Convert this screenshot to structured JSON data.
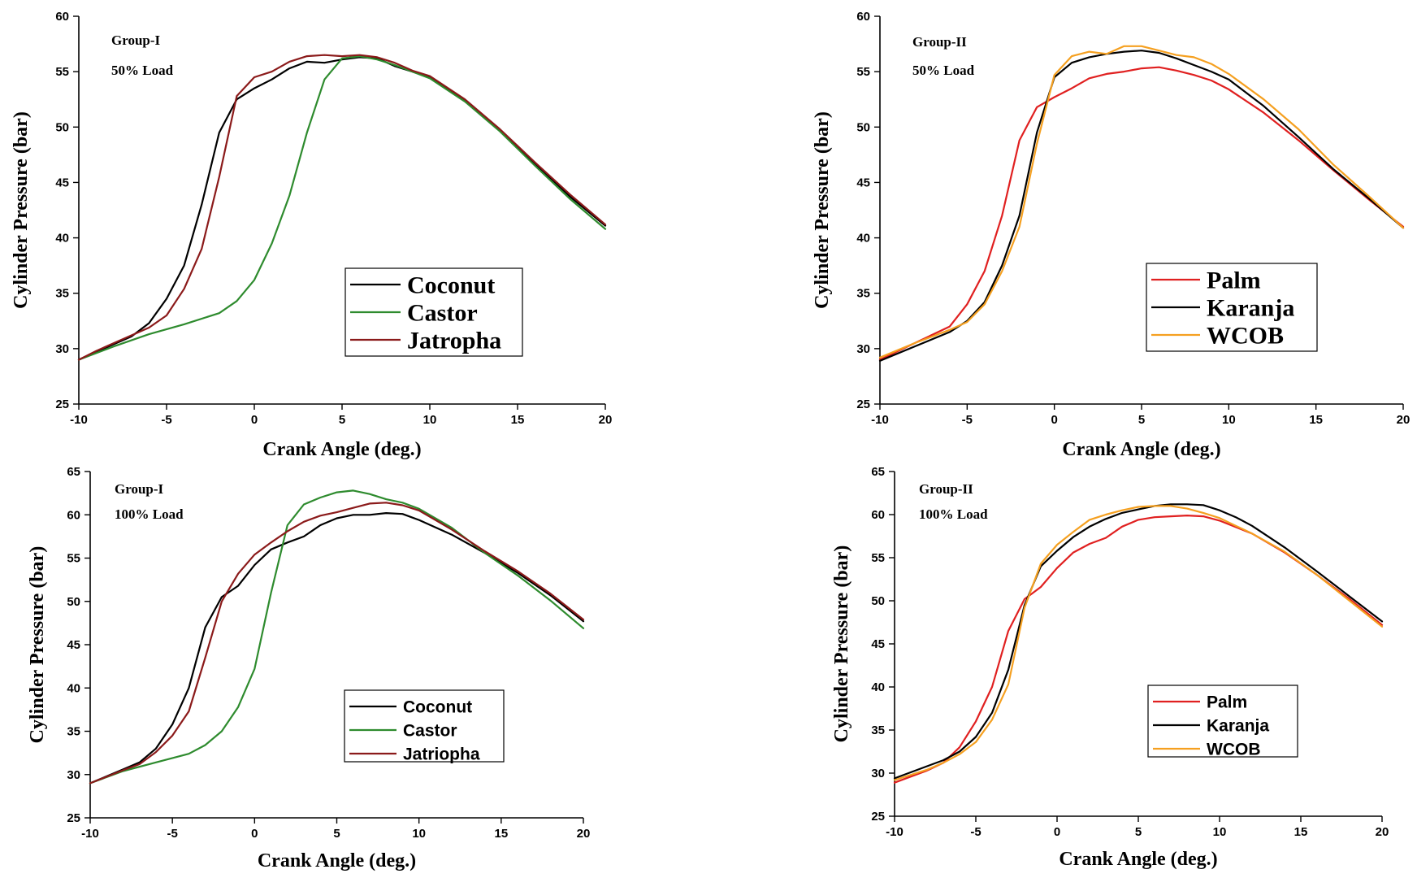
{
  "chart_data": [
    {
      "type": "line",
      "annotation": [
        "Group-I",
        "50% Load"
      ],
      "xlabel": "Crank Angle (deg.)",
      "ylabel": "Cylinder Pressure (bar)",
      "xlim": [
        -10,
        20
      ],
      "ylim": [
        25,
        60
      ],
      "xticks": [
        -10,
        -5,
        0,
        5,
        10,
        15,
        20
      ],
      "yticks": [
        25,
        30,
        35,
        40,
        45,
        50,
        55,
        60
      ],
      "legend_style": "serif",
      "series": [
        {
          "name": "Coconut",
          "color": "#000000",
          "x": [
            -10,
            -9,
            -8,
            -7,
            -6,
            -5,
            -4,
            -3,
            -2,
            -1,
            0,
            1,
            2,
            3,
            4,
            5,
            6,
            7,
            8,
            9,
            10,
            12,
            14,
            16,
            18,
            20
          ],
          "y": [
            29,
            29.7,
            30.4,
            31.1,
            32.3,
            34.5,
            37.5,
            43,
            49.5,
            52.5,
            53.5,
            54.3,
            55.3,
            55.9,
            55.8,
            56.1,
            56.3,
            56.2,
            55.5,
            55,
            54.5,
            52.4,
            49.7,
            46.7,
            43.7,
            41.1
          ]
        },
        {
          "name": "Castor",
          "color": "#2e8b2e",
          "x": [
            -10,
            -8,
            -6,
            -4,
            -2,
            -1,
            0,
            1,
            2,
            3,
            4,
            5,
            6,
            7,
            8,
            9,
            10,
            12,
            14,
            16,
            18,
            20
          ],
          "y": [
            29,
            30.2,
            31.3,
            32.2,
            33.2,
            34.3,
            36.2,
            39.5,
            43.8,
            49.5,
            54.3,
            56.2,
            56.4,
            56.1,
            55.6,
            55,
            54.4,
            52.3,
            49.6,
            46.5,
            43.5,
            40.8
          ]
        },
        {
          "name": "Jatropha",
          "color": "#8b1a1a",
          "x": [
            -10,
            -9,
            -8,
            -7,
            -6,
            -5,
            -4,
            -3,
            -2,
            -1,
            0,
            1,
            2,
            3,
            4,
            5,
            6,
            7,
            8,
            9,
            10,
            12,
            14,
            16,
            18,
            20
          ],
          "y": [
            29,
            29.8,
            30.5,
            31.2,
            31.9,
            33,
            35.4,
            39,
            45.5,
            52.8,
            54.5,
            55,
            55.9,
            56.4,
            56.5,
            56.4,
            56.5,
            56.3,
            55.8,
            55.1,
            54.6,
            52.5,
            49.8,
            46.8,
            43.9,
            41.2
          ]
        }
      ]
    },
    {
      "type": "line",
      "annotation": [
        "Group-II",
        "50% Load"
      ],
      "xlabel": "Crank Angle (deg.)",
      "ylabel": "Cylinder Pressure (bar)",
      "xlim": [
        -10,
        20
      ],
      "ylim": [
        25,
        60
      ],
      "xticks": [
        -10,
        -5,
        0,
        5,
        10,
        15,
        20
      ],
      "yticks": [
        25,
        30,
        35,
        40,
        45,
        50,
        55,
        60
      ],
      "legend_style": "serif",
      "series": [
        {
          "name": "Palm",
          "color": "#e02020",
          "x": [
            -10,
            -8,
            -6,
            -5,
            -4,
            -3,
            -2,
            -1,
            0,
            1,
            2,
            3,
            4,
            5,
            6,
            7,
            8,
            9,
            10,
            12,
            14,
            16,
            18,
            20
          ],
          "y": [
            29,
            30.5,
            32,
            34,
            37,
            42,
            48.8,
            51.8,
            52.7,
            53.5,
            54.4,
            54.8,
            55,
            55.3,
            55.4,
            55.1,
            54.7,
            54.2,
            53.4,
            51.3,
            48.8,
            46.1,
            43.5,
            41
          ]
        },
        {
          "name": "Karanja",
          "color": "#000000",
          "x": [
            -10,
            -8,
            -6,
            -5,
            -4,
            -3,
            -2,
            -1,
            0,
            1,
            2,
            3,
            4,
            5,
            6,
            7,
            8,
            9,
            10,
            12,
            14,
            16,
            18,
            20
          ],
          "y": [
            28.9,
            30.2,
            31.5,
            32.5,
            34.2,
            37.5,
            42,
            49.5,
            54.5,
            55.8,
            56.3,
            56.6,
            56.8,
            56.9,
            56.7,
            56.2,
            55.6,
            55,
            54.3,
            51.9,
            49.1,
            46.2,
            43.6,
            40.9
          ]
        },
        {
          "name": "WCOB",
          "color": "#f5a020",
          "x": [
            -10,
            -8,
            -6,
            -5,
            -4,
            -3,
            -2,
            -1,
            0,
            1,
            2,
            3,
            4,
            5,
            6,
            7,
            8,
            9,
            10,
            12,
            14,
            16,
            18,
            20
          ],
          "y": [
            29.2,
            30.5,
            31.7,
            32.4,
            34,
            37,
            41,
            48.5,
            54.7,
            56.4,
            56.8,
            56.6,
            57.3,
            57.3,
            56.9,
            56.5,
            56.3,
            55.7,
            54.8,
            52.5,
            49.8,
            46.6,
            43.8,
            40.9
          ]
        }
      ]
    },
    {
      "type": "line",
      "annotation": [
        "Group-I",
        "100% Load"
      ],
      "xlabel": "Crank Angle (deg.)",
      "ylabel": "Cylinder Pressure (bar)",
      "xlim": [
        -10,
        20
      ],
      "ylim": [
        25,
        65
      ],
      "xticks": [
        -10,
        -5,
        0,
        5,
        10,
        15,
        20
      ],
      "yticks": [
        25,
        30,
        35,
        40,
        45,
        50,
        55,
        60,
        65
      ],
      "legend_style": "sans",
      "series": [
        {
          "name": "Coconut",
          "color": "#000000",
          "x": [
            -10,
            -8,
            -7,
            -6,
            -5,
            -4,
            -3,
            -2,
            -1,
            0,
            1,
            2,
            3,
            4,
            5,
            6,
            7,
            8,
            9,
            10,
            12,
            14,
            16,
            18,
            20
          ],
          "y": [
            29,
            30.6,
            31.4,
            33,
            35.8,
            40,
            47,
            50.5,
            51.8,
            54.2,
            56,
            56.8,
            57.5,
            58.8,
            59.6,
            60,
            60,
            60.2,
            60.1,
            59.4,
            57.7,
            55.6,
            53.3,
            50.7,
            47.7
          ]
        },
        {
          "name": "Castor",
          "color": "#2e8b2e",
          "x": [
            -10,
            -8,
            -6,
            -4,
            -3,
            -2,
            -1,
            0,
            1,
            2,
            3,
            4,
            5,
            6,
            7,
            8,
            9,
            10,
            12,
            14,
            16,
            18,
            20
          ],
          "y": [
            29,
            30.4,
            31.4,
            32.4,
            33.4,
            35,
            37.8,
            42.2,
            51,
            58.8,
            61.2,
            62,
            62.6,
            62.8,
            62.4,
            61.8,
            61.4,
            60.7,
            58.5,
            55.6,
            53,
            50.1,
            46.9
          ]
        },
        {
          "name": "Jatriopha",
          "color": "#8b1a1a",
          "x": [
            -10,
            -8,
            -7,
            -6,
            -5,
            -4,
            -3,
            -2,
            -1,
            0,
            1,
            2,
            3,
            4,
            5,
            6,
            7,
            8,
            9,
            10,
            12,
            14,
            16,
            18,
            20
          ],
          "y": [
            29,
            30.5,
            31.2,
            32.6,
            34.5,
            37.3,
            43.5,
            50,
            53.2,
            55.4,
            56.8,
            58.1,
            59.2,
            59.9,
            60.3,
            60.8,
            61.3,
            61.4,
            61.1,
            60.5,
            58.3,
            55.8,
            53.5,
            50.9,
            47.9
          ]
        }
      ]
    },
    {
      "type": "line",
      "annotation": [
        "Group-II",
        "100% Load"
      ],
      "xlabel": "Crank Angle (deg.)",
      "ylabel": "Cylinder Pressure (bar)",
      "xlim": [
        -10,
        20
      ],
      "ylim": [
        25,
        65
      ],
      "xticks": [
        -10,
        -5,
        0,
        5,
        10,
        15,
        20
      ],
      "yticks": [
        25,
        30,
        35,
        40,
        45,
        50,
        55,
        60,
        65
      ],
      "legend_style": "sans",
      "series": [
        {
          "name": "Palm",
          "color": "#e02020",
          "x": [
            -10,
            -8,
            -7,
            -6,
            -5,
            -4,
            -3,
            -2,
            -1,
            0,
            1,
            2,
            3,
            4,
            5,
            6,
            7,
            8,
            9,
            10,
            12,
            14,
            16,
            18,
            20
          ],
          "y": [
            28.9,
            30.3,
            31.2,
            33,
            36,
            40,
            46.5,
            50.2,
            51.6,
            53.8,
            55.6,
            56.6,
            57.3,
            58.6,
            59.4,
            59.7,
            59.8,
            59.9,
            59.8,
            59.3,
            57.8,
            55.6,
            53,
            50.2,
            47.2
          ]
        },
        {
          "name": "Karanja",
          "color": "#000000",
          "x": [
            -10,
            -8,
            -7,
            -6,
            -5,
            -4,
            -3,
            -2,
            -1,
            0,
            1,
            2,
            3,
            4,
            5,
            6,
            7,
            8,
            9,
            10,
            11,
            12,
            14,
            16,
            18,
            20
          ],
          "y": [
            29.4,
            30.8,
            31.5,
            32.5,
            34.2,
            37,
            42,
            49.5,
            54,
            55.8,
            57.4,
            58.6,
            59.5,
            60.2,
            60.6,
            61,
            61.2,
            61.2,
            61.1,
            60.5,
            59.7,
            58.7,
            56.2,
            53.4,
            50.5,
            47.6
          ]
        },
        {
          "name": "WCOB",
          "color": "#f5a020",
          "x": [
            -10,
            -8,
            -7,
            -6,
            -5,
            -4,
            -3,
            -2,
            -1,
            0,
            1,
            2,
            3,
            4,
            5,
            6,
            7,
            8,
            9,
            10,
            12,
            14,
            16,
            18,
            20
          ],
          "y": [
            29.2,
            30.4,
            31.2,
            32.2,
            33.6,
            36.2,
            40.3,
            49.2,
            54.3,
            56.5,
            58,
            59.4,
            60,
            60.5,
            60.9,
            61,
            61,
            60.7,
            60.2,
            59.6,
            57.8,
            55.7,
            53,
            50,
            47
          ]
        }
      ]
    }
  ]
}
